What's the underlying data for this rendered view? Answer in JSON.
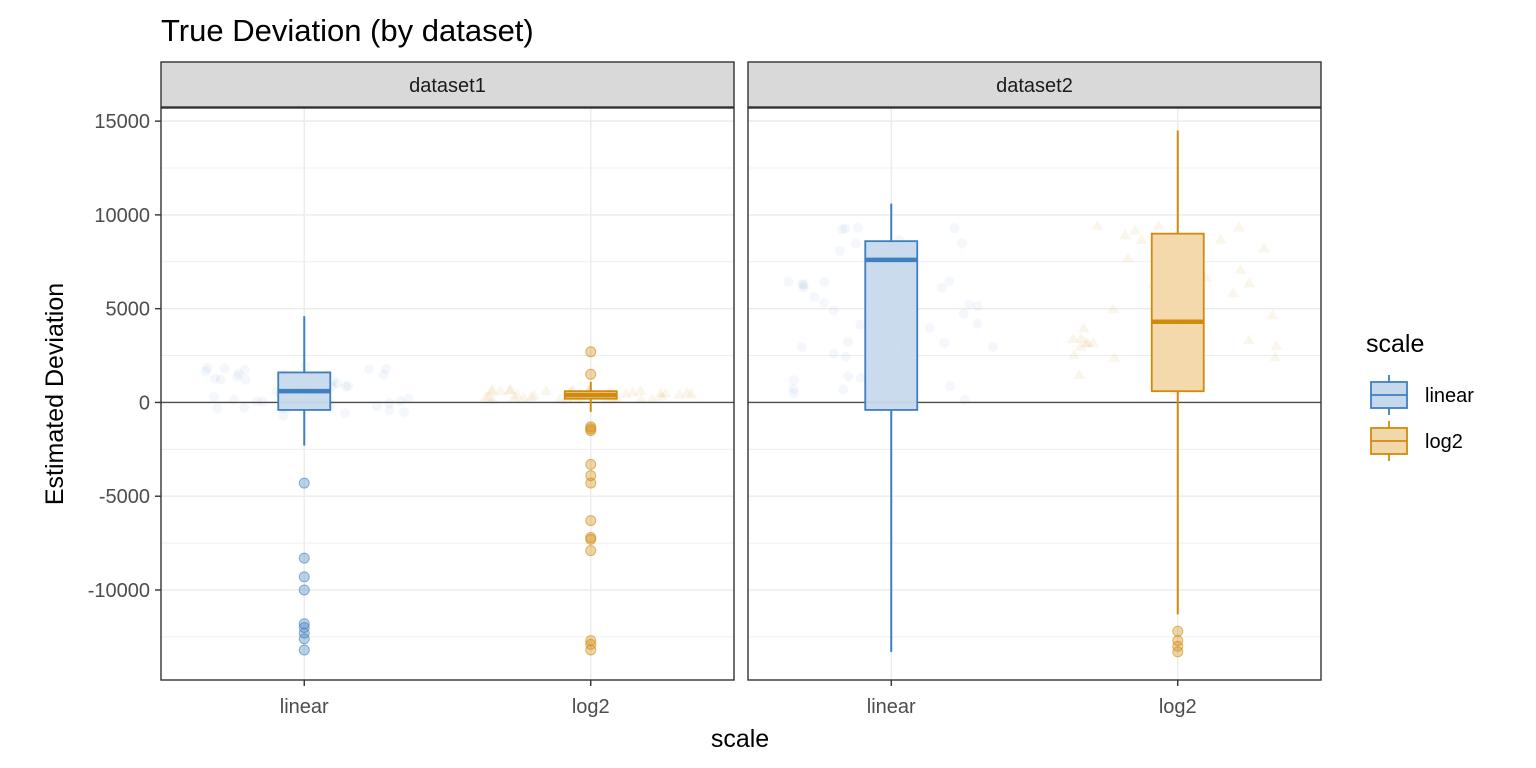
{
  "chart_data": {
    "type": "box",
    "title": "True Deviation (by dataset)",
    "xlabel": "scale",
    "ylabel": "Estimated Deviation",
    "ylim": [
      -14800,
      15700
    ],
    "yticks": [
      -10000,
      -5000,
      0,
      5000,
      10000,
      15000
    ],
    "categories": [
      "linear",
      "log2"
    ],
    "grid": true,
    "reference_line": 0,
    "legend": {
      "title": "scale",
      "position": "right",
      "entries": [
        {
          "label": "linear",
          "color": "#3f7fbf",
          "fill": "#c6d9ec"
        },
        {
          "label": "log2",
          "color": "#d08a0c",
          "fill": "#f2d7a8"
        }
      ]
    },
    "panels": [
      {
        "label": "dataset1",
        "boxes": [
          {
            "scale": "linear",
            "lower_whisker": -2300,
            "q1": -400,
            "median": 600,
            "q3": 1600,
            "upper_whisker": 4600,
            "outliers": [
              -4300,
              -8300,
              -9300,
              -10000,
              -11800,
              -12000,
              -12300,
              -12600,
              -13200
            ]
          },
          {
            "scale": "log2",
            "lower_whisker": -500,
            "q1": 200,
            "median": 400,
            "q3": 600,
            "upper_whisker": 1100,
            "outliers": [
              2700,
              1500,
              -1300,
              -1400,
              -1500,
              -3300,
              -3900,
              -4300,
              -6300,
              -7200,
              -7300,
              -7900,
              -12700,
              -12900,
              -13200
            ]
          }
        ]
      },
      {
        "label": "dataset2",
        "boxes": [
          {
            "scale": "linear",
            "lower_whisker": -13300,
            "q1": -400,
            "median": 7600,
            "q3": 8600,
            "upper_whisker": 10600,
            "outliers": []
          },
          {
            "scale": "log2",
            "lower_whisker": -11300,
            "q1": 600,
            "median": 4300,
            "q3": 9000,
            "upper_whisker": 14500,
            "outliers": [
              -12200,
              -12700,
              -13000,
              -13300
            ]
          }
        ]
      }
    ]
  }
}
